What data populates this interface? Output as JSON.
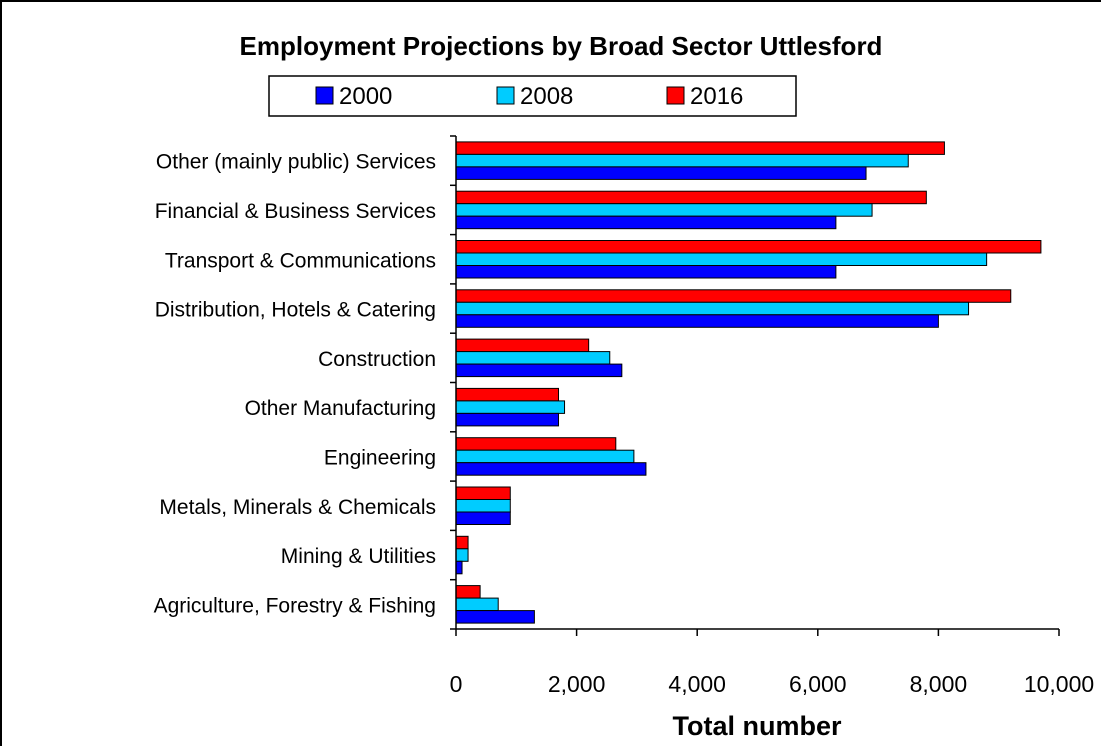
{
  "chart_data": {
    "type": "bar",
    "orientation": "horizontal",
    "title": "Employment Projections by Broad Sector Uttlesford",
    "xlabel": "Total number",
    "ylabel": "",
    "xlim": [
      0,
      10000
    ],
    "x_ticks": [
      "0",
      "2,000",
      "4,000",
      "6,000",
      "8,000",
      "10,000"
    ],
    "x_tick_values": [
      0,
      2000,
      4000,
      6000,
      8000,
      10000
    ],
    "grid": false,
    "legend_position": "top",
    "categories": [
      "Other (mainly public) Services",
      "Financial & Business Services",
      "Transport & Communications",
      "Distribution, Hotels & Catering",
      "Construction",
      "Other Manufacturing",
      "Engineering",
      "Metals, Minerals & Chemicals",
      "Mining & Utilities",
      "Agriculture, Forestry & Fishing"
    ],
    "series": [
      {
        "name": "2000",
        "color": "#0000ff",
        "values": [
          6800,
          6300,
          6300,
          8000,
          2750,
          1700,
          3150,
          900,
          100,
          1300
        ]
      },
      {
        "name": "2008",
        "color": "#00ccff",
        "values": [
          7500,
          6900,
          8800,
          8500,
          2550,
          1800,
          2950,
          900,
          200,
          700
        ]
      },
      {
        "name": "2016",
        "color": "#ff0000",
        "values": [
          8100,
          7800,
          9700,
          9200,
          2200,
          1700,
          2650,
          900,
          200,
          400
        ]
      }
    ]
  }
}
